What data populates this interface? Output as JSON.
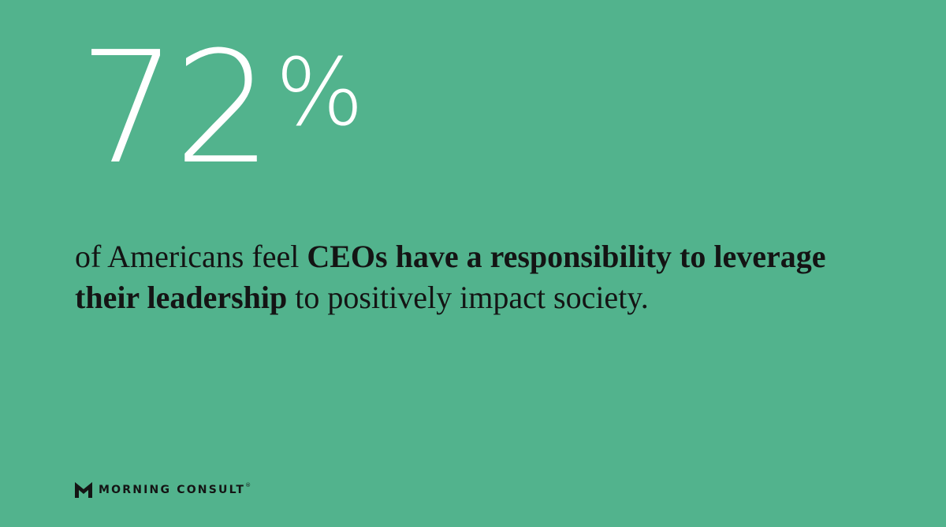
{
  "stat": {
    "value": 72,
    "unit": "%"
  },
  "statement": {
    "lines": [
      [
        {
          "text": "of Americans feel ",
          "bold": false
        },
        {
          "text": "CEOs have a responsibility to leverage",
          "bold": true
        }
      ],
      [
        {
          "text": "their leadership",
          "bold": true
        },
        {
          "text": " to positively impact society.",
          "bold": false
        }
      ]
    ]
  },
  "logo": {
    "text": "MORNING CONSULT",
    "mark": "®"
  }
}
